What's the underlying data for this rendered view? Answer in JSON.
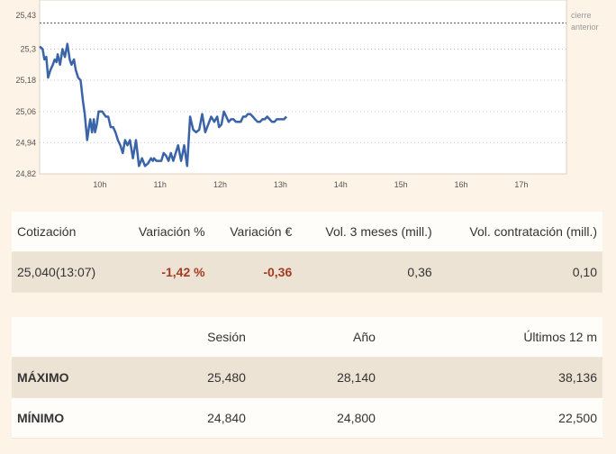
{
  "chart_data": {
    "type": "line",
    "legend": "cierre anterior",
    "legend_lines": [
      "cierre",
      "anterior"
    ],
    "y_ticks": [
      "25,43",
      "25,3",
      "25,18",
      "25,06",
      "24,94",
      "24,82"
    ],
    "y_tick_values": [
      25.43,
      25.3,
      25.18,
      25.06,
      24.94,
      24.82
    ],
    "x_ticks": [
      "10h",
      "11h",
      "12h",
      "13h",
      "14h",
      "15h",
      "16h",
      "17h"
    ],
    "x_tick_values": [
      10,
      11,
      12,
      13,
      14,
      15,
      16,
      17
    ],
    "x_range": [
      9,
      17.75
    ],
    "ylim": [
      24.82,
      25.43
    ],
    "previous_close": 25.4,
    "series": [
      {
        "color": "#3a63a8",
        "x": [
          9.0,
          9.05,
          9.08,
          9.11,
          9.14,
          9.18,
          9.22,
          9.25,
          9.28,
          9.3,
          9.34,
          9.38,
          9.42,
          9.46,
          9.5,
          9.53,
          9.57,
          9.6,
          9.64,
          9.68,
          9.72,
          9.75,
          9.79,
          9.82,
          9.84,
          9.87,
          9.9,
          9.92,
          9.95,
          9.98,
          10.01,
          10.04,
          10.07,
          10.1,
          10.14,
          10.18,
          10.22,
          10.26,
          10.3,
          10.34,
          10.38,
          10.42,
          10.46,
          10.5,
          10.55,
          10.6,
          10.65,
          10.7,
          10.75,
          10.8,
          10.85,
          10.88,
          10.9,
          10.94,
          10.98,
          11.02,
          11.06,
          11.1,
          11.14,
          11.18,
          11.22,
          11.26,
          11.3,
          11.35,
          11.4,
          11.45,
          11.5,
          11.55,
          11.6,
          11.65,
          11.7,
          11.75,
          11.8,
          11.85,
          11.9,
          11.95,
          11.98,
          12.02,
          12.06,
          12.1,
          12.14,
          12.18,
          12.22,
          12.26,
          12.3,
          12.34,
          12.38,
          12.42,
          12.46,
          12.5,
          12.54,
          12.58,
          12.62,
          12.66,
          12.7,
          12.74,
          12.78,
          12.82,
          12.86,
          12.9,
          12.94,
          12.98,
          13.02,
          13.06,
          13.1
        ],
        "y": [
          25.31,
          25.3,
          25.26,
          25.27,
          25.19,
          25.22,
          25.24,
          25.26,
          25.25,
          25.28,
          25.24,
          25.3,
          25.27,
          25.32,
          25.26,
          25.24,
          25.26,
          25.22,
          25.19,
          25.18,
          25.1,
          25.05,
          24.95,
          25.0,
          25.03,
          24.98,
          25.03,
          24.98,
          25.01,
          25.06,
          25.06,
          25.06,
          25.05,
          25.04,
          25.04,
          25.0,
          25.0,
          24.98,
          24.95,
          24.93,
          24.9,
          24.95,
          24.93,
          24.95,
          24.88,
          24.95,
          24.85,
          24.88,
          24.85,
          24.86,
          24.88,
          24.87,
          24.88,
          24.87,
          24.87,
          24.87,
          24.9,
          24.89,
          24.87,
          24.9,
          24.87,
          24.9,
          24.93,
          24.87,
          24.93,
          24.85,
          25.04,
          24.99,
          24.98,
          24.99,
          25.05,
          24.98,
          25.01,
          25.04,
          25.02,
          25.04,
          25.0,
          25.01,
          25.06,
          25.04,
          25.02,
          25.03,
          25.03,
          25.02,
          25.02,
          25.02,
          25.04,
          25.04,
          25.05,
          25.05,
          25.04,
          25.03,
          25.02,
          25.02,
          25.03,
          25.03,
          25.04,
          25.03,
          25.02,
          25.02,
          25.03,
          25.03,
          25.03,
          25.03,
          25.04
        ]
      }
    ]
  },
  "quote_table": {
    "headers": [
      "Cotización",
      "Variación %",
      "Variación €",
      "Vol. 3 meses (mill.)",
      "Vol. contratación (mill.)"
    ],
    "row": [
      "25,040(13:07)",
      "-1,42 %",
      "-0,36",
      "0,36",
      "0,10"
    ]
  },
  "range_table": {
    "headers": [
      "",
      "Sesión",
      "Año",
      "Últimos 12 m"
    ],
    "rows": [
      [
        "MÁXIMO",
        "25,480",
        "28,140",
        "38,136"
      ],
      [
        "MÍNIMO",
        "24,840",
        "24,800",
        "22,500"
      ]
    ]
  }
}
